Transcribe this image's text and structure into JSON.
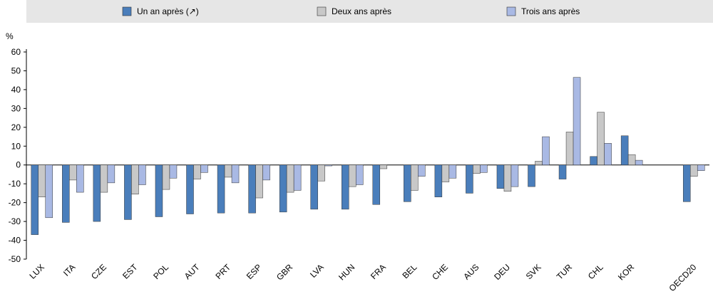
{
  "chart_data": {
    "type": "bar",
    "y_unit": "%",
    "categories": [
      "LUX",
      "ITA",
      "CZE",
      "EST",
      "POL",
      "AUT",
      "PRT",
      "ESP",
      "GBR",
      "LVA",
      "HUN",
      "FRA",
      "BEL",
      "CHE",
      "AUS",
      "DEU",
      "SVK",
      "TUR",
      "CHL",
      "KOR",
      null,
      "OECD20"
    ],
    "series": [
      {
        "name": "Un an après (↗)",
        "color": "#4a7ebb",
        "values": [
          -37,
          -30.5,
          -30,
          -29,
          -27.5,
          -26,
          -25.5,
          -25.5,
          -25,
          -23.5,
          -23.5,
          -21,
          -19.5,
          -17,
          -15,
          -12.5,
          -11.5,
          -7.5,
          4.5,
          15.5,
          null,
          -19.5
        ]
      },
      {
        "name": "Deux ans après",
        "color": "#c8c8c8",
        "values": [
          -17,
          -8,
          -14.5,
          -15.5,
          -13,
          -7.5,
          -6.5,
          -17.5,
          -14.5,
          -8.5,
          -11.5,
          -2,
          -13.5,
          -9,
          -4.5,
          -14,
          2,
          17.5,
          28,
          5.5,
          null,
          -6
        ]
      },
      {
        "name": "Trois ans après",
        "color": "#a9b9e4",
        "values": [
          -28,
          -14.5,
          -9.5,
          -10.5,
          -7,
          -4,
          -9.5,
          -8,
          -13.5,
          -0.5,
          -10.5,
          null,
          -6,
          -7,
          -4,
          -11.5,
          15,
          46.5,
          11.5,
          2.5,
          null,
          -3
        ]
      }
    ],
    "ylim": [
      -50,
      60
    ],
    "yticks": [
      60,
      50,
      40,
      30,
      20,
      10,
      0,
      -10,
      -20,
      -30,
      -40,
      -50
    ],
    "grid": false
  }
}
